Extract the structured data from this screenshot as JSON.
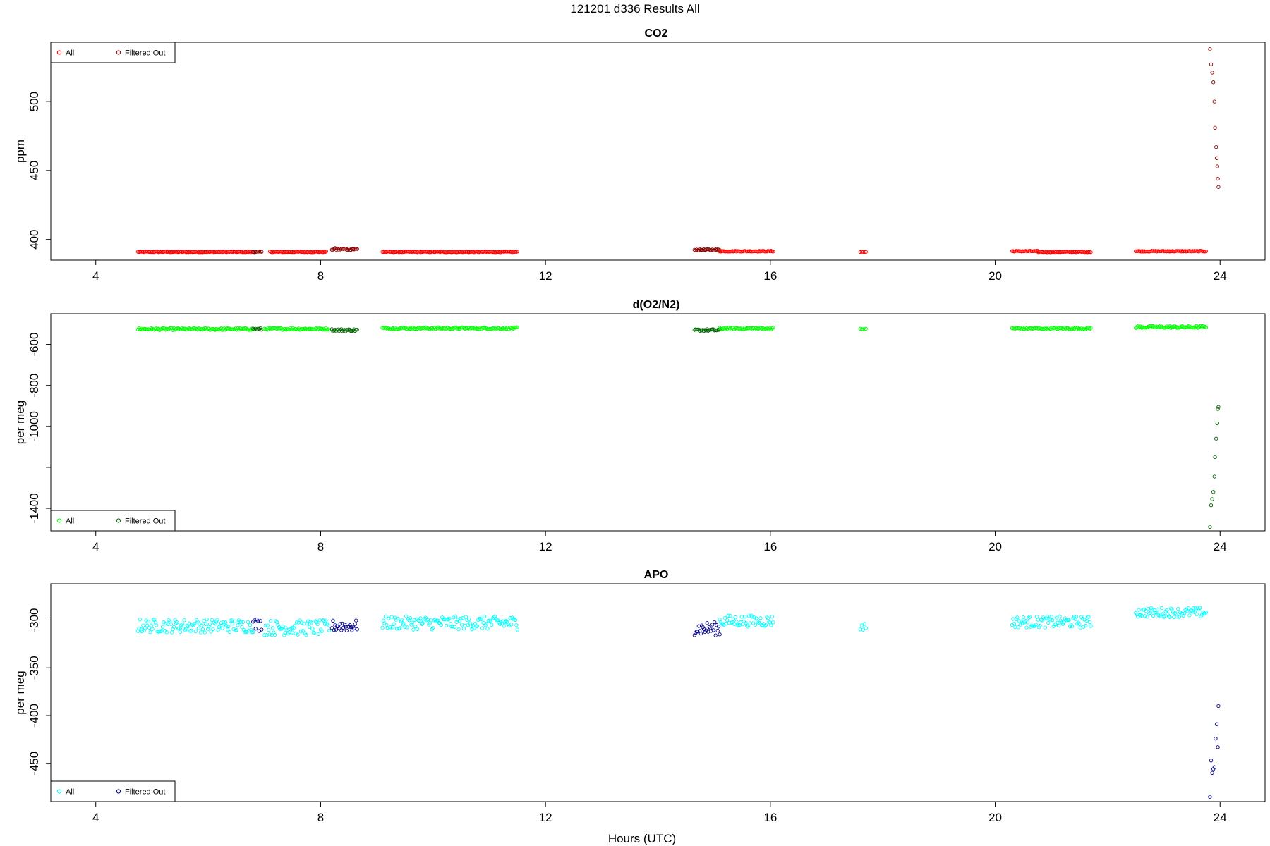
{
  "figure": {
    "title": "121201   d336   Results All",
    "xlabel": "Hours (UTC)"
  },
  "chart_data": [
    {
      "type": "scatter",
      "title": "CO2",
      "xlabel": "Hours (UTC)",
      "ylabel": "ppm",
      "xlim": [
        3.2,
        24.8
      ],
      "ylim": [
        385,
        543
      ],
      "xticks": [
        4,
        8,
        12,
        16,
        20,
        24
      ],
      "yticks": [
        400,
        450,
        500
      ],
      "legend": {
        "position": "top-left",
        "entries": [
          "All",
          "Filtered Out"
        ]
      },
      "colors": {
        "all": "#ff0000",
        "filtered": "#8b0000"
      },
      "segments": [
        {
          "x": [
            4.75,
            6.8
          ],
          "y": 391,
          "jitter": 0.3,
          "filtered": false
        },
        {
          "x": [
            6.8,
            6.95
          ],
          "y": 391,
          "jitter": 0.3,
          "filtered": true
        },
        {
          "x": [
            7.1,
            8.1
          ],
          "y": 391,
          "jitter": 0.3,
          "filtered": false
        },
        {
          "x": [
            8.2,
            8.65
          ],
          "y": 393,
          "jitter": 0.8,
          "filtered": true
        },
        {
          "x": [
            9.1,
            11.5
          ],
          "y": 391,
          "jitter": 0.3,
          "filtered": false
        },
        {
          "x": [
            14.65,
            15.1
          ],
          "y": 392.5,
          "jitter": 0.5,
          "filtered": true
        },
        {
          "x": [
            15.1,
            16.05
          ],
          "y": 391.5,
          "jitter": 0.3,
          "filtered": false
        },
        {
          "x": [
            17.6,
            17.7
          ],
          "y": 391,
          "jitter": 0.2,
          "filtered": false
        },
        {
          "x": [
            20.3,
            20.75
          ],
          "y": 391.5,
          "jitter": 0.3,
          "filtered": false
        },
        {
          "x": [
            20.75,
            21.7
          ],
          "y": 391,
          "jitter": 0.3,
          "filtered": false
        },
        {
          "x": [
            22.5,
            23.1
          ],
          "y": 391.5,
          "jitter": 0.3,
          "filtered": false
        },
        {
          "x": [
            23.1,
            23.75
          ],
          "y": 391.5,
          "jitter": 0.3,
          "filtered": false
        }
      ],
      "extra_points": {
        "x": [
          23.82,
          23.84,
          23.86,
          23.88,
          23.9,
          23.91,
          23.93,
          23.94,
          23.95,
          23.96,
          23.97
        ],
        "y": [
          538,
          527,
          521,
          514,
          500,
          481,
          467,
          459,
          453,
          444,
          438
        ],
        "filtered": true
      }
    },
    {
      "type": "scatter",
      "title": "d(O2/N2)",
      "xlabel": "Hours (UTC)",
      "ylabel": "per meg",
      "xlim": [
        3.2,
        24.8
      ],
      "ylim": [
        -1510,
        -450
      ],
      "xticks": [
        4,
        8,
        12,
        16,
        20,
        24
      ],
      "yticks": [
        -600,
        -800,
        -1000,
        -1200,
        -1400
      ],
      "ytick_labels": [
        "-600",
        "-800",
        "-1000",
        "",
        "-1400"
      ],
      "legend": {
        "position": "bottom-left",
        "entries": [
          "All",
          "Filtered Out"
        ]
      },
      "colors": {
        "all": "#00ff00",
        "filtered": "#006400"
      },
      "segments": [
        {
          "x": [
            4.75,
            6.8
          ],
          "y": -525,
          "jitter": 5,
          "filtered": false
        },
        {
          "x": [
            6.8,
            6.95
          ],
          "y": -525,
          "jitter": 5,
          "filtered": true
        },
        {
          "x": [
            7.0,
            8.15
          ],
          "y": -524,
          "jitter": 5,
          "filtered": false
        },
        {
          "x": [
            8.2,
            8.65
          ],
          "y": -530,
          "jitter": 6,
          "filtered": true
        },
        {
          "x": [
            9.1,
            11.5
          ],
          "y": -521,
          "jitter": 5,
          "filtered": false
        },
        {
          "x": [
            14.65,
            15.1
          ],
          "y": -530,
          "jitter": 5,
          "filtered": true
        },
        {
          "x": [
            15.1,
            16.05
          ],
          "y": -522,
          "jitter": 5,
          "filtered": false
        },
        {
          "x": [
            17.6,
            17.7
          ],
          "y": -525,
          "jitter": 3,
          "filtered": false
        },
        {
          "x": [
            20.3,
            21.7
          ],
          "y": -522,
          "jitter": 5,
          "filtered": false
        },
        {
          "x": [
            22.5,
            23.75
          ],
          "y": -515,
          "jitter": 5,
          "filtered": false
        }
      ],
      "extra_points": {
        "x": [
          23.82,
          23.84,
          23.86,
          23.88,
          23.9,
          23.91,
          23.93,
          23.95,
          23.96,
          23.97
        ],
        "y": [
          -1490,
          -1385,
          -1355,
          -1320,
          -1245,
          -1150,
          -1060,
          -985,
          -915,
          -905
        ],
        "filtered": true
      }
    },
    {
      "type": "scatter",
      "title": "APO",
      "xlabel": "Hours (UTC)",
      "ylabel": "per meg",
      "xlim": [
        3.2,
        24.8
      ],
      "ylim": [
        -490,
        -262
      ],
      "xticks": [
        4,
        8,
        12,
        16,
        20,
        24
      ],
      "yticks": [
        -300,
        -350,
        -400,
        -450
      ],
      "legend": {
        "position": "bottom-left",
        "entries": [
          "All",
          "Filtered Out"
        ]
      },
      "colors": {
        "all": "#00ffff",
        "filtered": "#00008b"
      },
      "segments": [
        {
          "x": [
            4.75,
            6.8
          ],
          "y": -306,
          "jitter": 7,
          "filtered": false
        },
        {
          "x": [
            6.8,
            6.95
          ],
          "y": -305,
          "jitter": 7,
          "filtered": true
        },
        {
          "x": [
            7.0,
            8.15
          ],
          "y": -308,
          "jitter": 8,
          "filtered": false
        },
        {
          "x": [
            8.2,
            8.65
          ],
          "y": -306,
          "jitter": 6,
          "filtered": true
        },
        {
          "x": [
            9.1,
            11.5
          ],
          "y": -303,
          "jitter": 7,
          "filtered": false
        },
        {
          "x": [
            14.65,
            15.1
          ],
          "y": -309,
          "jitter": 7,
          "filtered": true
        },
        {
          "x": [
            15.1,
            16.05
          ],
          "y": -301,
          "jitter": 6,
          "filtered": false
        },
        {
          "x": [
            17.6,
            17.7
          ],
          "y": -307,
          "jitter": 4,
          "filtered": false
        },
        {
          "x": [
            20.3,
            21.7
          ],
          "y": -302,
          "jitter": 6,
          "filtered": false
        },
        {
          "x": [
            22.5,
            23.75
          ],
          "y": -292,
          "jitter": 5,
          "filtered": false
        }
      ],
      "extra_points": {
        "x": [
          23.82,
          23.84,
          23.86,
          23.88,
          23.9,
          23.92,
          23.94,
          23.96,
          23.97
        ],
        "y": [
          -485,
          -447,
          -460,
          -456,
          -454,
          -424,
          -409,
          -433,
          -390
        ],
        "filtered": true
      }
    }
  ]
}
